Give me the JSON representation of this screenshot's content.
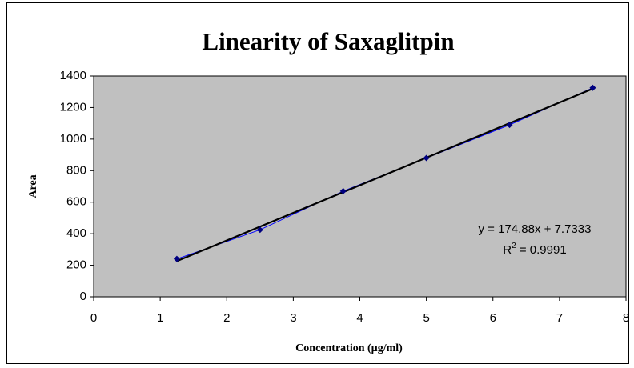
{
  "chart_data": {
    "type": "scatter",
    "title": "Linearity of Saxaglitpin",
    "xlabel": "Concentration  (µg/ml)",
    "ylabel": "Area",
    "series": [
      {
        "name": "Area",
        "color": "#000080",
        "line_color": "#0000ff",
        "x": [
          1.25,
          2.5,
          3.75,
          5,
          6.25,
          7.5
        ],
        "values": [
          240,
          425,
          670,
          880,
          1090,
          1325
        ]
      }
    ],
    "trendline": {
      "slope": 174.88,
      "intercept": 7.7333,
      "color": "#000000",
      "equation": "y = 174.88x + 7.7333",
      "r2_base": "R",
      "r2_sup": "2",
      "r2_rest": " = 0.9991"
    },
    "xlim": [
      0,
      8
    ],
    "xticks": [
      0,
      1,
      2,
      3,
      4,
      5,
      6,
      7,
      8
    ],
    "ylim": [
      0,
      1400
    ],
    "yticks": [
      0,
      200,
      400,
      600,
      800,
      1000,
      1200,
      1400
    ],
    "grid": false,
    "plot_background": "#c0c0c0"
  }
}
